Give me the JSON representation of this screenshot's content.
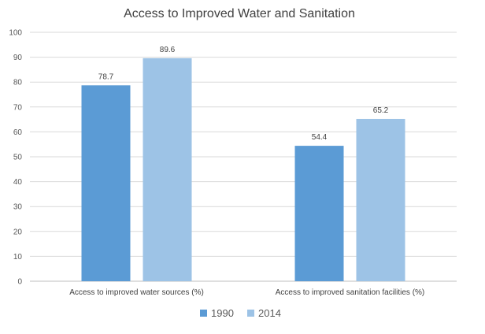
{
  "chart_data": {
    "type": "bar",
    "title": "Access to Improved Water and Sanitation",
    "xlabel": "",
    "ylabel": "",
    "categories": [
      "Access to improved water sources (%)",
      "Access to improved sanitation facilities (%)"
    ],
    "series": [
      {
        "name": "1990",
        "values": [
          78.7,
          54.4
        ],
        "color": "#5b9bd5"
      },
      {
        "name": "2014",
        "values": [
          89.6,
          65.2
        ],
        "color": "#9dc3e6"
      }
    ],
    "ylim": [
      0,
      100
    ],
    "yticks": [
      0,
      10,
      20,
      30,
      40,
      50,
      60,
      70,
      80,
      90,
      100
    ],
    "grid": true,
    "legend_position": "bottom",
    "data_labels": true
  }
}
